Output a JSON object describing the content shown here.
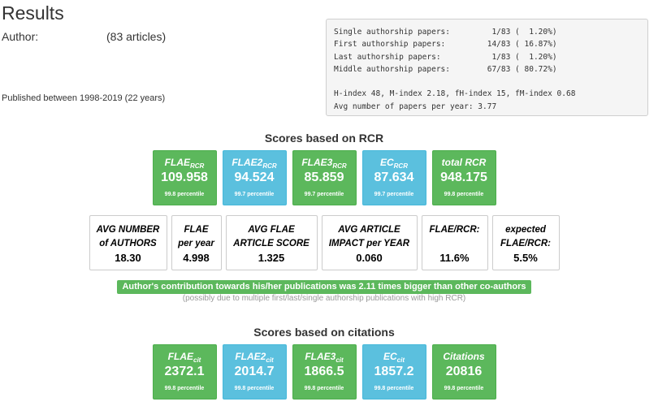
{
  "header": {
    "title": "Results",
    "author_label": "Author:",
    "article_count": "(83 articles)",
    "published": "Published between 1998-2019 (22 years)"
  },
  "stats": {
    "lines": [
      "Single authorship papers:         1/83 (  1.20%)",
      "First authorship papers:         14/83 ( 16.87%)",
      "Last authorship papers:           1/83 (  1.20%)",
      "Middle authorship papers:        67/83 ( 80.72%)"
    ],
    "index_line": "H-index 48, M-index 2.18, fH-index 15, fM-index 0.68",
    "avg_line": "Avg number of papers per year: 3.77"
  },
  "rcr": {
    "title": "Scores based on RCR",
    "tiles": [
      {
        "label": "FLAE",
        "sub": "RCR",
        "value": "109.958",
        "percentile": "99.8 percentile",
        "color": "#5cb85c"
      },
      {
        "label": "FLAE2",
        "sub": "RCR",
        "value": "94.524",
        "percentile": "99.7 percentile",
        "color": "#5bc0de"
      },
      {
        "label": "FLAE3",
        "sub": "RCR",
        "value": "85.859",
        "percentile": "99.7 percentile",
        "color": "#5cb85c"
      },
      {
        "label": "EC",
        "sub": "RCR",
        "value": "87.634",
        "percentile": "99.7 percentile",
        "color": "#5bc0de"
      },
      {
        "label": "total RCR",
        "sub": "",
        "value": "948.175",
        "percentile": "99.8 percentile",
        "color": "#5cb85c"
      }
    ]
  },
  "metrics": [
    {
      "line1": "AVG NUMBER",
      "line2": "of AUTHORS",
      "value": "18.30"
    },
    {
      "line1": "FLAE",
      "line2": "per year",
      "value": "4.998"
    },
    {
      "line1": "AVG FLAE",
      "line2": "ARTICLE SCORE",
      "value": "1.325"
    },
    {
      "line1": "AVG ARTICLE",
      "line2": "IMPACT per YEAR",
      "value": "0.060"
    },
    {
      "line1": "FLAE/RCR:",
      "line2": "",
      "value": "11.6%"
    },
    {
      "line1": "expected",
      "line2": "FLAE/RCR:",
      "value": "5.5%"
    }
  ],
  "banner": "Author's contribution towards his/her publications was 2.11 times bigger than other co-authors",
  "note": "(possibly due to multiple first/last/single authorship publications with high RCR)",
  "citations": {
    "title": "Scores based on citations",
    "tiles": [
      {
        "label": "FLAE",
        "sub": "cit",
        "value": "2372.1",
        "percentile": "99.8 percentile",
        "color": "#5cb85c"
      },
      {
        "label": "FLAE2",
        "sub": "cit",
        "value": "2014.7",
        "percentile": "99.8 percentile",
        "color": "#5bc0de"
      },
      {
        "label": "FLAE3",
        "sub": "cit",
        "value": "1866.5",
        "percentile": "99.8 percentile",
        "color": "#5cb85c"
      },
      {
        "label": "EC",
        "sub": "cit",
        "value": "1857.2",
        "percentile": "99.8 percentile",
        "color": "#5bc0de"
      },
      {
        "label": "Citations",
        "sub": "",
        "value": "20816",
        "percentile": "99.8 percentile",
        "color": "#5cb85c"
      }
    ]
  }
}
